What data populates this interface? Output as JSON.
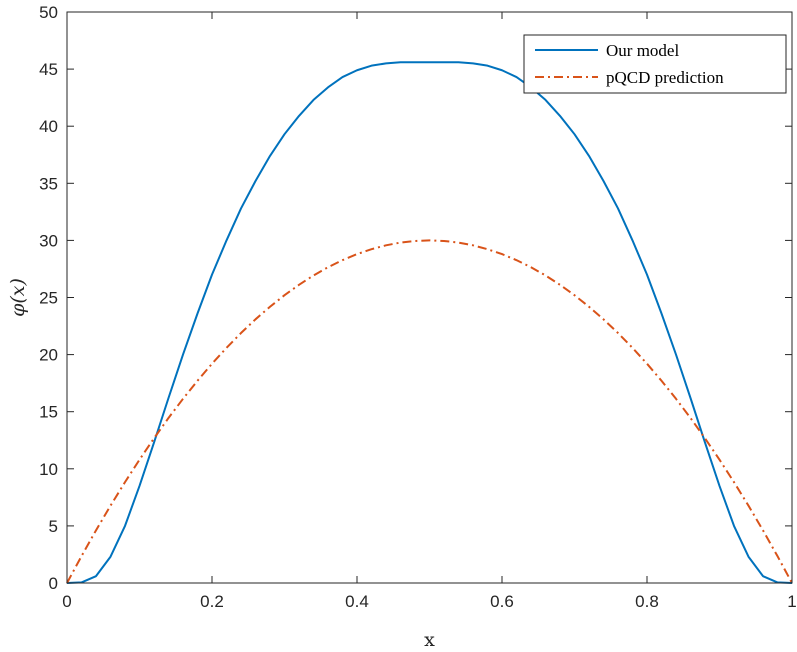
{
  "chart_data": {
    "type": "line",
    "xlabel": "x",
    "ylabel": "φ(x)",
    "xlim": [
      0,
      1
    ],
    "ylim": [
      0,
      50
    ],
    "xticks": [
      0,
      0.2,
      0.4,
      0.6,
      0.8,
      1
    ],
    "xtick_labels": [
      "0",
      "0.2",
      "0.4",
      "0.6",
      "0.8",
      "1"
    ],
    "yticks": [
      0,
      5,
      10,
      15,
      20,
      25,
      30,
      35,
      40,
      45,
      50
    ],
    "ytick_labels": [
      "0",
      "5",
      "10",
      "15",
      "20",
      "25",
      "30",
      "35",
      "40",
      "45",
      "50"
    ],
    "grid": false,
    "legend_position": "top-right",
    "x": [
      0,
      0.02,
      0.04,
      0.06,
      0.08,
      0.1,
      0.12,
      0.14,
      0.16,
      0.18,
      0.2,
      0.22,
      0.24,
      0.26,
      0.28,
      0.3,
      0.32,
      0.34,
      0.36,
      0.38,
      0.4,
      0.42,
      0.44,
      0.46,
      0.48,
      0.5,
      0.52,
      0.54,
      0.56,
      0.58,
      0.6,
      0.62,
      0.64,
      0.66,
      0.68,
      0.7,
      0.72,
      0.74,
      0.76,
      0.78,
      0.8,
      0.82,
      0.84,
      0.86,
      0.88,
      0.9,
      0.92,
      0.94,
      0.96,
      0.98,
      1
    ],
    "series": [
      {
        "name": "Our model",
        "color": "#0072BD",
        "style": "solid",
        "values": [
          0,
          0.05,
          0.6,
          2.3,
          5.0,
          8.5,
          12.3,
          16.2,
          20.0,
          23.6,
          27.0,
          30.0,
          32.8,
          35.2,
          37.4,
          39.3,
          40.9,
          42.3,
          43.4,
          44.3,
          44.9,
          45.3,
          45.5,
          45.6,
          45.6,
          45.6,
          45.6,
          45.6,
          45.5,
          45.3,
          44.9,
          44.3,
          43.4,
          42.3,
          40.9,
          39.3,
          37.4,
          35.2,
          32.8,
          30.0,
          27.0,
          23.6,
          20.0,
          16.2,
          12.3,
          8.5,
          5.0,
          2.3,
          0.6,
          0.05,
          0
        ]
      },
      {
        "name": "pQCD prediction",
        "color": "#D95319",
        "style": "dashdot",
        "values": [
          0,
          2.35,
          4.61,
          6.77,
          8.83,
          10.8,
          12.67,
          14.45,
          16.13,
          17.71,
          19.2,
          20.59,
          21.89,
          23.09,
          24.19,
          25.2,
          26.11,
          26.93,
          27.65,
          28.27,
          28.8,
          29.23,
          29.57,
          29.81,
          29.95,
          30.0,
          29.95,
          29.81,
          29.57,
          29.23,
          28.8,
          28.27,
          27.65,
          26.93,
          26.11,
          25.2,
          24.19,
          23.09,
          21.89,
          20.59,
          19.2,
          17.71,
          16.13,
          14.45,
          12.67,
          10.8,
          8.83,
          6.77,
          4.61,
          2.35,
          0
        ]
      }
    ]
  }
}
